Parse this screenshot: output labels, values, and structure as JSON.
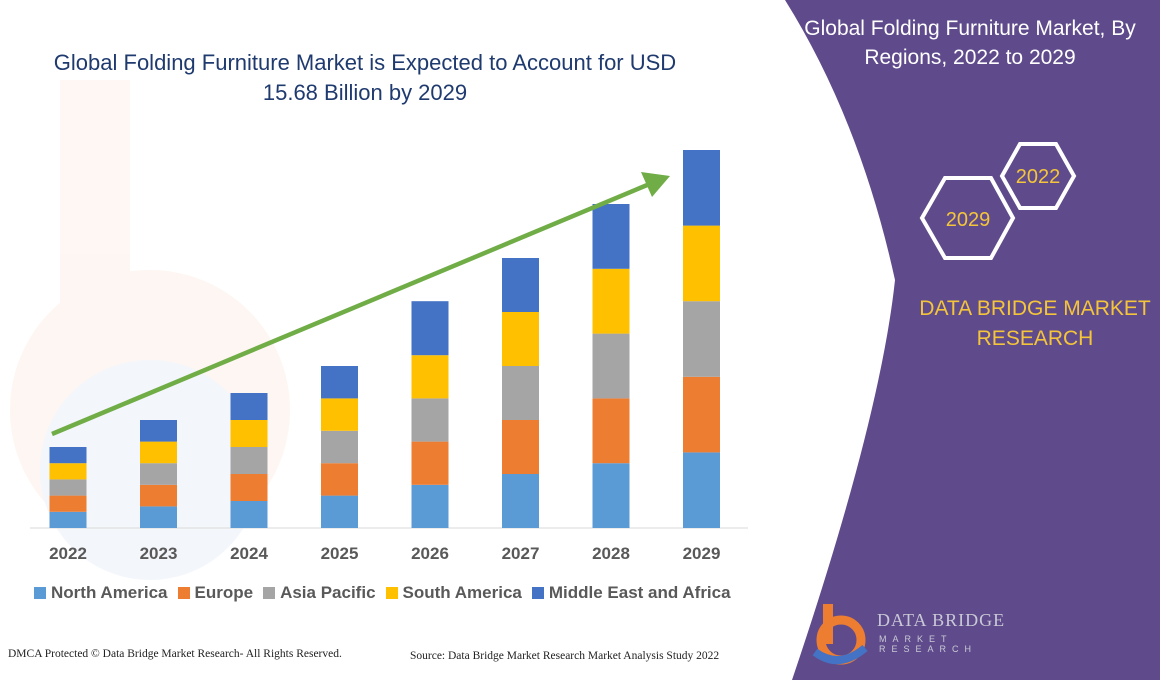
{
  "chart_title": "Global Folding Furniture Market is Expected to Account for USD 15.68 Billion by 2029",
  "panel": {
    "title": "Global Folding Furniture Market, By Regions, 2022 to 2029",
    "hex_top_label": "2022",
    "hex_bottom_label": "2029",
    "brand": "DATA BRIDGE MARKET RESEARCH",
    "background_color": "#5f4b8b"
  },
  "logo": {
    "name": "DATA BRIDGE",
    "subtitle": "MARKET RESEARCH"
  },
  "footer": {
    "left": "DMCA Protected © Data Bridge Market Research- All Rights Reserved.",
    "right": "Source: Data Bridge Market Research Market Analysis Study 2022"
  },
  "chart_data": {
    "type": "bar",
    "stacked": true,
    "categories": [
      "2022",
      "2023",
      "2024",
      "2025",
      "2026",
      "2027",
      "2028",
      "2029"
    ],
    "series": [
      {
        "name": "North America",
        "color": "#5b9bd5",
        "values": [
          1.5,
          2.0,
          2.5,
          3.0,
          4.0,
          5.0,
          6.0,
          7.0
        ]
      },
      {
        "name": "Europe",
        "color": "#ed7d31",
        "values": [
          1.5,
          2.0,
          2.5,
          3.0,
          4.0,
          5.0,
          6.0,
          7.0
        ]
      },
      {
        "name": "Asia Pacific",
        "color": "#a5a5a5",
        "values": [
          1.5,
          2.0,
          2.5,
          3.0,
          4.0,
          5.0,
          6.0,
          7.0
        ]
      },
      {
        "name": "South America",
        "color": "#ffc000",
        "values": [
          1.5,
          2.0,
          2.5,
          3.0,
          4.0,
          5.0,
          6.0,
          7.0
        ]
      },
      {
        "name": "Middle East and Africa",
        "color": "#4472c4",
        "values": [
          1.5,
          2.0,
          2.5,
          3.0,
          5.0,
          5.0,
          6.0,
          7.0
        ]
      }
    ],
    "ylim": [
      0,
      35
    ],
    "trend_arrow": {
      "from": "2022",
      "to": "2029",
      "color": "#70ad47"
    },
    "legend_position": "bottom",
    "grid": false
  }
}
